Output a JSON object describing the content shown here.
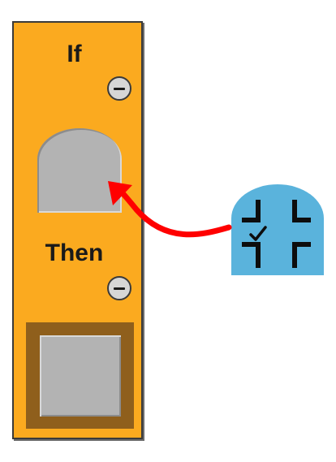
{
  "rule_block": {
    "if_label": "If",
    "then_label": "Then"
  },
  "icons": {
    "if_minus": "minus-circle-icon",
    "then_minus": "minus-circle-icon",
    "sensor": "intersection-sensor-icon",
    "arrow": "curved-arrow-icon"
  },
  "colors": {
    "block": "#FBAA1F",
    "then_frame": "#8F5F1C",
    "slot": "#B3B3B3",
    "sensor_piece": "#5AB3DC",
    "arrow": "#FF0000"
  }
}
